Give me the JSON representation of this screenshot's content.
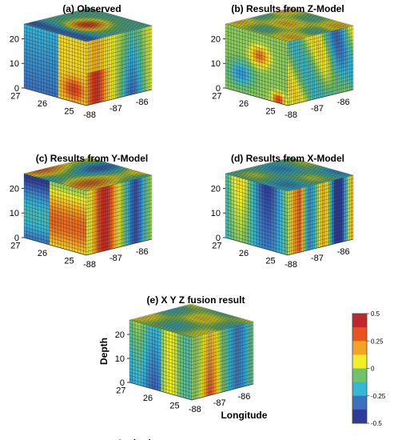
{
  "panels": [
    {
      "title": "(a) Observed",
      "chart_data": {
        "type": "heatmap",
        "z_ticks": [
          "0",
          "10",
          "20"
        ],
        "lat_ticks": [
          "27",
          "26",
          "25"
        ],
        "lon_ticks": [
          "-88",
          "-87",
          "-86"
        ],
        "zlim": [
          0,
          26
        ],
        "latlim": [
          24.5,
          27
        ],
        "lonlim": [
          -88.2,
          -85.5
        ],
        "xlabel": "",
        "ylabel": "",
        "zlabel": "",
        "grid": true
      }
    },
    {
      "title": "(b) Results from Z-Model",
      "chart_data": {
        "type": "heatmap",
        "z_ticks": [
          "0",
          "10",
          "20"
        ],
        "lat_ticks": [
          "27",
          "26",
          "25"
        ],
        "lon_ticks": [
          "-88",
          "-87",
          "-86"
        ],
        "zlim": [
          0,
          26
        ],
        "latlim": [
          24.5,
          27
        ],
        "lonlim": [
          -88.2,
          -85.5
        ],
        "xlabel": "",
        "ylabel": "",
        "zlabel": "",
        "grid": true
      }
    },
    {
      "title": "(c) Results from Y-Model",
      "chart_data": {
        "type": "heatmap",
        "z_ticks": [
          "0",
          "10",
          "20"
        ],
        "lat_ticks": [
          "27",
          "26",
          "25"
        ],
        "lon_ticks": [
          "-88",
          "-87",
          "-86"
        ],
        "zlim": [
          0,
          26
        ],
        "latlim": [
          24.5,
          27
        ],
        "lonlim": [
          -88.2,
          -85.5
        ],
        "xlabel": "",
        "ylabel": "",
        "zlabel": "",
        "grid": true
      }
    },
    {
      "title": "(d) Results from X-Model",
      "chart_data": {
        "type": "heatmap",
        "z_ticks": [
          "0",
          "10",
          "20"
        ],
        "lat_ticks": [
          "27",
          "26",
          "25"
        ],
        "lon_ticks": [
          "-88",
          "-87",
          "-86"
        ],
        "zlim": [
          0,
          26
        ],
        "latlim": [
          24.5,
          27
        ],
        "lonlim": [
          -88.2,
          -85.5
        ],
        "xlabel": "",
        "ylabel": "",
        "zlabel": "",
        "grid": true
      }
    },
    {
      "title": "(e)  X Y Z fusion result",
      "chart_data": {
        "type": "heatmap",
        "z_ticks": [
          "0",
          "10",
          "20"
        ],
        "lat_ticks": [
          "27",
          "26",
          "25"
        ],
        "lon_ticks": [
          "-88",
          "-87",
          "-86"
        ],
        "zlim": [
          0,
          26
        ],
        "latlim": [
          24.5,
          27
        ],
        "lonlim": [
          -88.2,
          -85.5
        ],
        "xlabel": "Longitude",
        "ylabel": "Latitude",
        "zlabel": "Depth",
        "grid": true
      }
    }
  ],
  "colorbar": {
    "range": [
      -0.5,
      0.5
    ],
    "tick_labels": [
      "0.5",
      "0.25",
      "0",
      "-0.25",
      "-0.5"
    ],
    "tick_values": [
      0.5,
      0.25,
      0,
      -0.25,
      -0.5
    ],
    "colors": [
      "#c0272d",
      "#e8541c",
      "#f4a424",
      "#f2ef28",
      "#6fc36c",
      "#34b8d8",
      "#3c71c1",
      "#2c3c98"
    ]
  }
}
